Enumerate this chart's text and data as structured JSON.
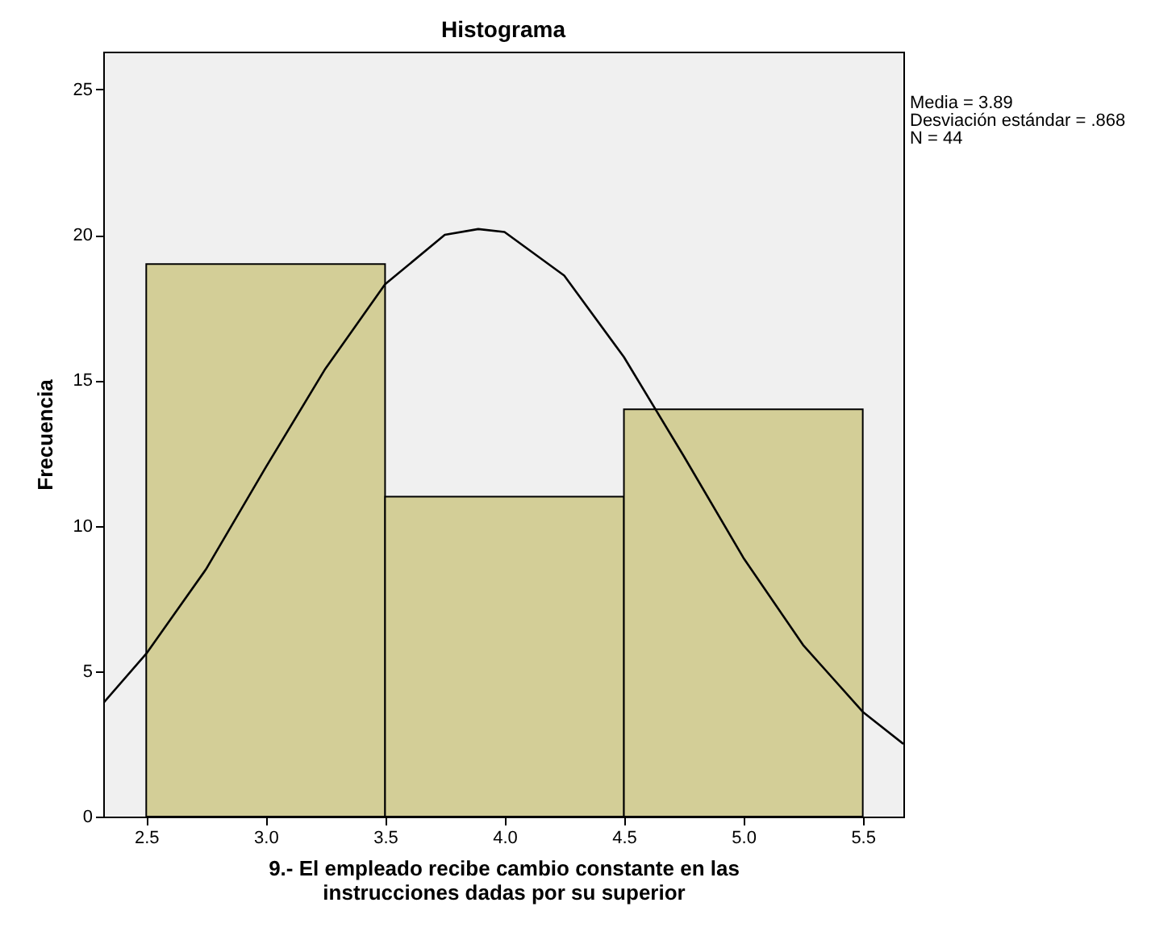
{
  "chart_data": {
    "type": "histogram",
    "title": "Histograma",
    "xlabel": "9.- El empleado recibe cambio constante en las instrucciones dadas por su superior",
    "ylabel": "Frecuencia",
    "bins": [
      2.5,
      3.5,
      4.5,
      5.5
    ],
    "values": [
      19,
      11,
      14
    ],
    "color": "#d3ce97",
    "series": [
      {
        "type": "line",
        "color": "#000000",
        "x": [
          2.32,
          2.5,
          2.75,
          3.0,
          3.25,
          3.5,
          3.75,
          3.89,
          4.0,
          4.25,
          4.5,
          4.75,
          5.0,
          5.25,
          5.5,
          5.67
        ],
        "values": [
          3.9,
          5.6,
          8.5,
          12.0,
          15.4,
          18.3,
          20.0,
          20.2,
          20.1,
          18.6,
          15.8,
          12.4,
          8.9,
          5.9,
          3.6,
          2.5
        ]
      }
    ],
    "xlim": [
      2.32,
      5.67
    ],
    "ylim": [
      0,
      26.3
    ],
    "xticks": [
      2.5,
      {
        "value": 3,
        "label": "3.0"
      },
      3.5,
      {
        "value": 4,
        "label": "4.0"
      },
      4.5,
      {
        "value": 5,
        "label": "5.0"
      },
      5.5
    ],
    "yticks": [
      0,
      5,
      10,
      15,
      20,
      25
    ],
    "grid": false,
    "annotations": [
      "Media = 3.89",
      "Desviación estándar = .868",
      "N = 44"
    ]
  }
}
